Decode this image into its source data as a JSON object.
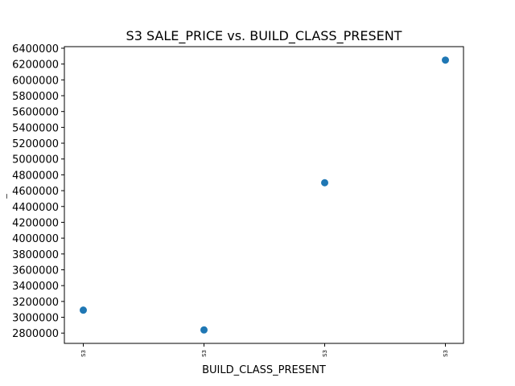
{
  "chart_data": {
    "type": "scatter",
    "title": "S3 SALE_PRICE vs. BUILD_CLASS_PRESENT",
    "xlabel": "BUILD_CLASS_PRESENT",
    "ylabel": "_",
    "categories": [
      "S3",
      "S3",
      "S3",
      "S3"
    ],
    "values": [
      3090000,
      2840000,
      4700000,
      6250000
    ],
    "yticks": [
      2800000,
      3000000,
      3200000,
      3400000,
      3600000,
      3800000,
      4000000,
      4200000,
      4400000,
      4600000,
      4800000,
      5000000,
      5200000,
      5400000,
      5600000,
      5800000,
      6000000,
      6200000,
      6400000
    ],
    "ylim": [
      2670000,
      6420000
    ],
    "grid": false,
    "marker_color": "#1f77b4"
  }
}
